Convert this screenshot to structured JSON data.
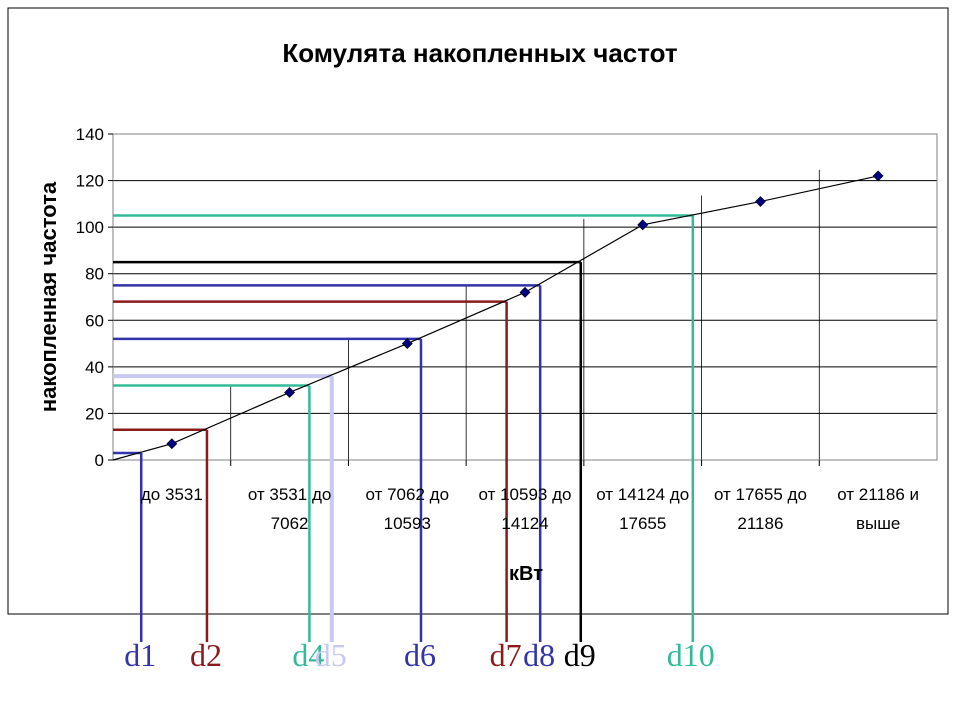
{
  "chart_data": {
    "type": "line",
    "title": "Комулята накопленных частот",
    "xlabel": "кВт",
    "ylabel": "накопленная частота",
    "ylim": [
      0,
      140
    ],
    "yticks": [
      "0",
      "20",
      "40",
      "60",
      "80",
      "100",
      "120",
      "140"
    ],
    "categories": [
      [
        "до 3531"
      ],
      [
        "от 3531 до",
        "7062"
      ],
      [
        "от 7062 до",
        "10593"
      ],
      [
        "от 10593 до",
        "14124"
      ],
      [
        "от 14124 до",
        "17655"
      ],
      [
        "от 17655 до",
        "21186"
      ],
      [
        "от 21186 и",
        "выше"
      ]
    ],
    "series": [
      {
        "values": [
          7,
          29,
          50,
          72,
          101,
          111,
          122
        ],
        "color": "#000000",
        "marker_color": "#000080"
      }
    ],
    "grid": true,
    "annotations": [
      {
        "label": "d1",
        "color": "#3333aa",
        "y": 3
      },
      {
        "label": "d2",
        "color": "#8b1a1a",
        "y": 13
      },
      {
        "label": "d4",
        "color": "#33bb99",
        "y": 32
      },
      {
        "label": "d5",
        "color": "#c8c8f0",
        "y": 36
      },
      {
        "label": "d6",
        "color": "#3333aa",
        "y": 52
      },
      {
        "label": "d7",
        "color": "#8b1a1a",
        "y": 68
      },
      {
        "label": "d8",
        "color": "#3333aa",
        "y": 75
      },
      {
        "label": "d9",
        "color": "#000000",
        "y": 85
      },
      {
        "label": "d10",
        "color": "#33bb99",
        "y": 105
      }
    ]
  }
}
